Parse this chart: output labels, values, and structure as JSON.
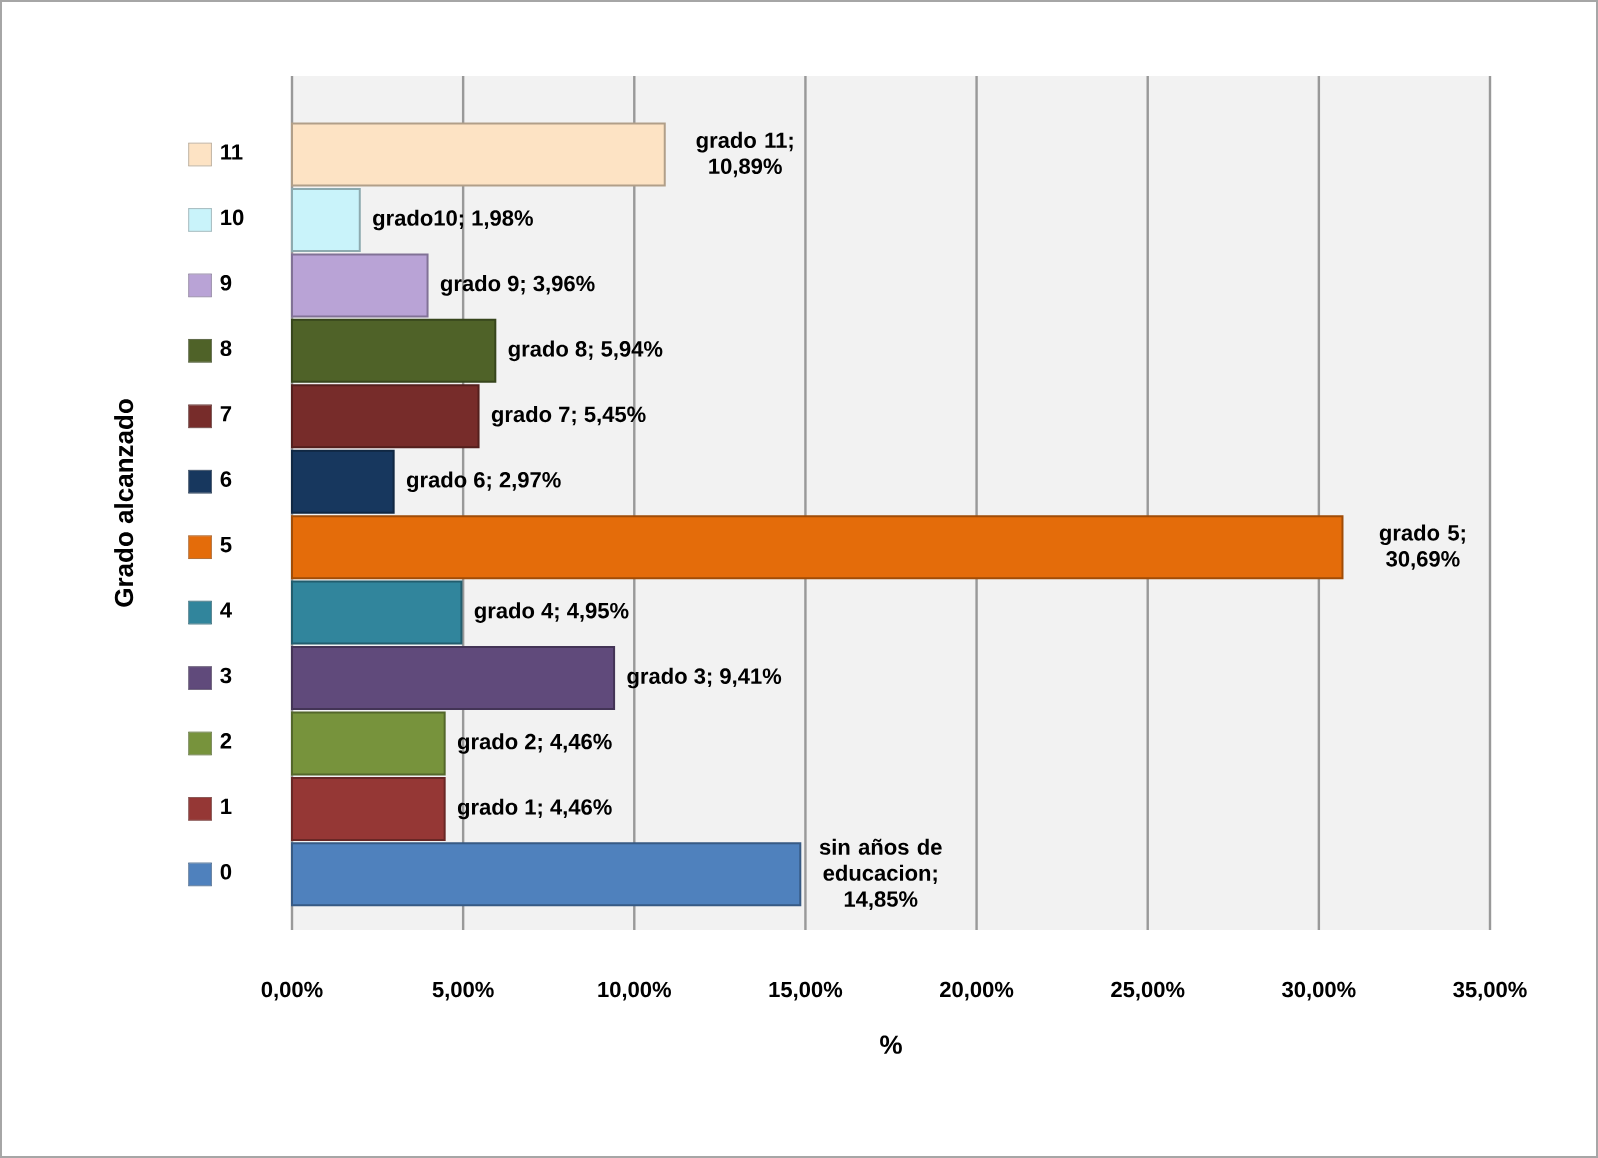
{
  "chart_data": {
    "type": "bar",
    "orientation": "horizontal",
    "xlabel": "%",
    "ylabel": "Grado alcanzado",
    "categories": [
      "11",
      "10",
      "9",
      "8",
      "7",
      "6",
      "5",
      "4",
      "3",
      "2",
      "1",
      "0"
    ],
    "values": [
      10.89,
      1.98,
      3.96,
      5.94,
      5.45,
      2.97,
      30.69,
      4.95,
      9.41,
      4.46,
      4.46,
      14.85
    ],
    "colors": [
      "#fde3c4",
      "#c9f3fa",
      "#b9a3d6",
      "#4f6228",
      "#772c2a",
      "#17375e",
      "#e46c0a",
      "#31859c",
      "#604a7b",
      "#77933c",
      "#953735",
      "#4f81bd"
    ],
    "value_labels": [
      "grado 11; 10,89%",
      "grado10; 1,98%",
      "grado 9; 3,96%",
      "grado 8; 5,94%",
      "grado 7; 5,45%",
      "grado 6; 2,97%",
      "grado 5; 30,69%",
      "grado 4; 4,95%",
      "grado 3; 9,41%",
      "grado 2; 4,46%",
      "grado 1; 4,46%",
      "sin años de educacion; 14,85%"
    ],
    "xlim": [
      0,
      35
    ],
    "xticks": [
      {
        "value": 0,
        "label": "0,00%"
      },
      {
        "value": 5,
        "label": "5,00%"
      },
      {
        "value": 10,
        "label": "10,00%"
      },
      {
        "value": 15,
        "label": "15,00%"
      },
      {
        "value": 20,
        "label": "20,00%"
      },
      {
        "value": 25,
        "label": "25,00%"
      },
      {
        "value": 30,
        "label": "30,00%"
      },
      {
        "value": 35,
        "label": "35,00%"
      }
    ],
    "grid": "x"
  }
}
